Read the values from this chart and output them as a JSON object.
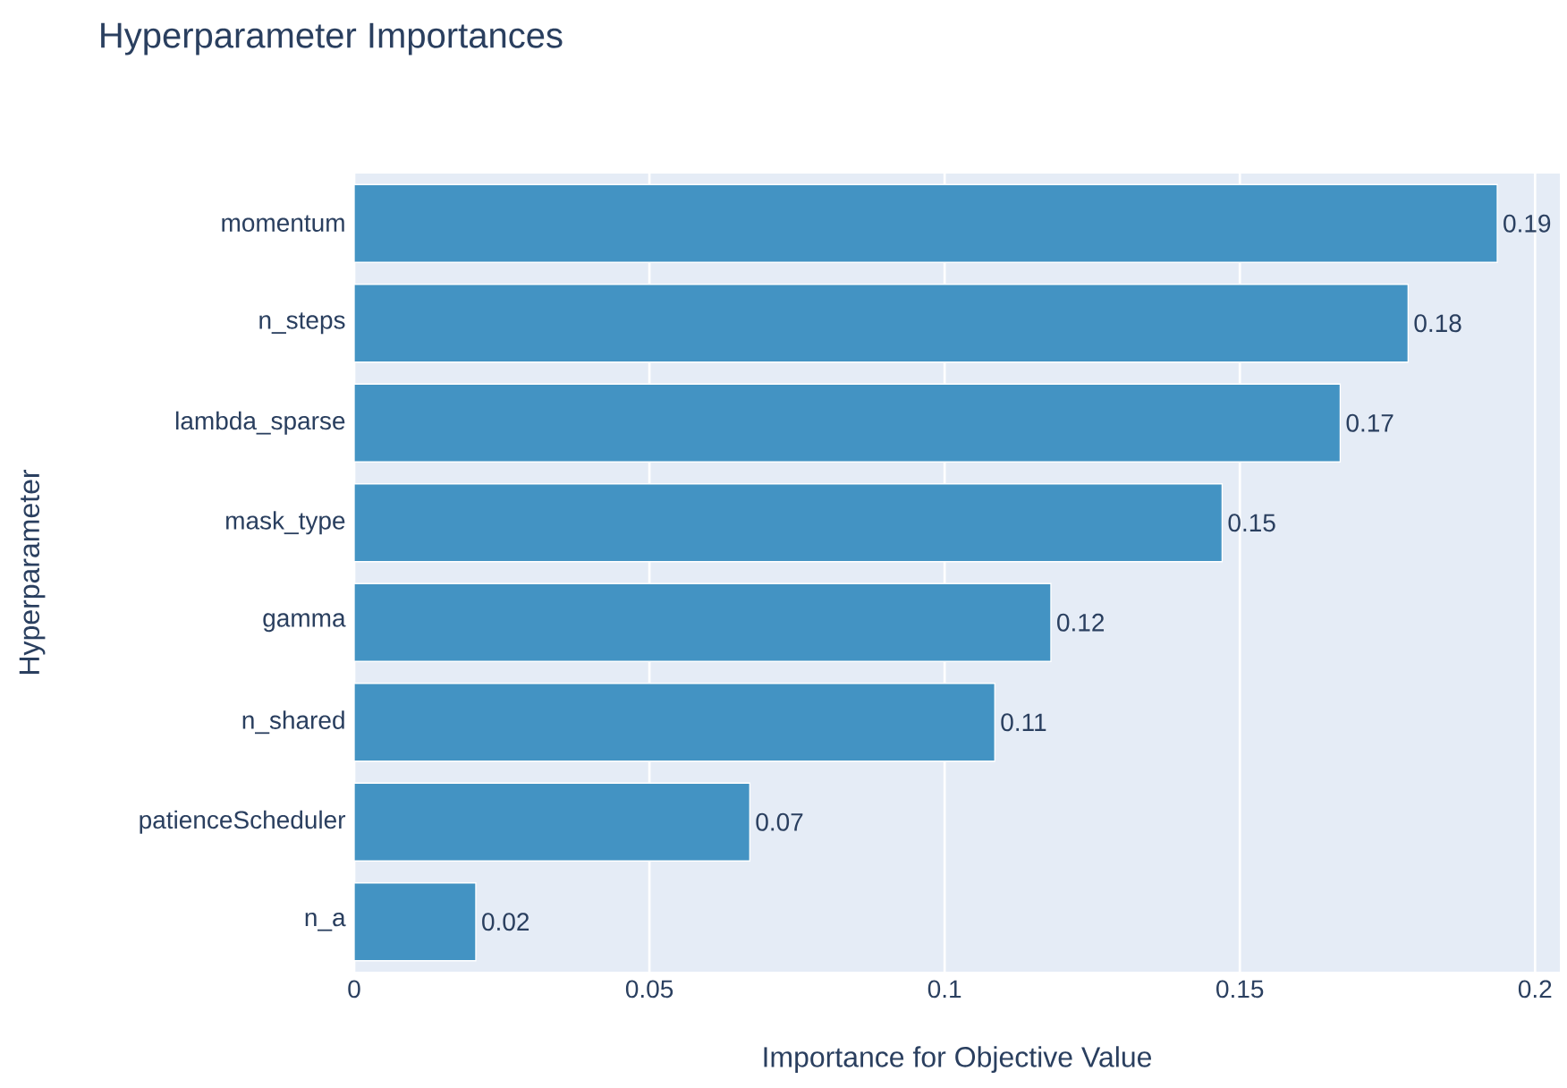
{
  "chart_data": {
    "type": "bar",
    "orientation": "horizontal",
    "title": "Hyperparameter Importances",
    "xlabel": "Importance for Objective Value",
    "ylabel": "Hyperparameter",
    "categories": [
      "momentum",
      "n_steps",
      "lambda_sparse",
      "mask_type",
      "gamma",
      "n_shared",
      "patienceScheduler",
      "n_a"
    ],
    "values": [
      0.1936,
      0.1785,
      0.167,
      0.147,
      0.118,
      0.1085,
      0.067,
      0.0206
    ],
    "value_labels": [
      "0.19",
      "0.18",
      "0.17",
      "0.15",
      "0.12",
      "0.11",
      "0.07",
      "0.02"
    ],
    "color": "#4393c3",
    "xlim": [
      0,
      0.2042
    ],
    "xticks": [
      0,
      0.05,
      0.1,
      0.15,
      0.2
    ],
    "grid": "x"
  }
}
